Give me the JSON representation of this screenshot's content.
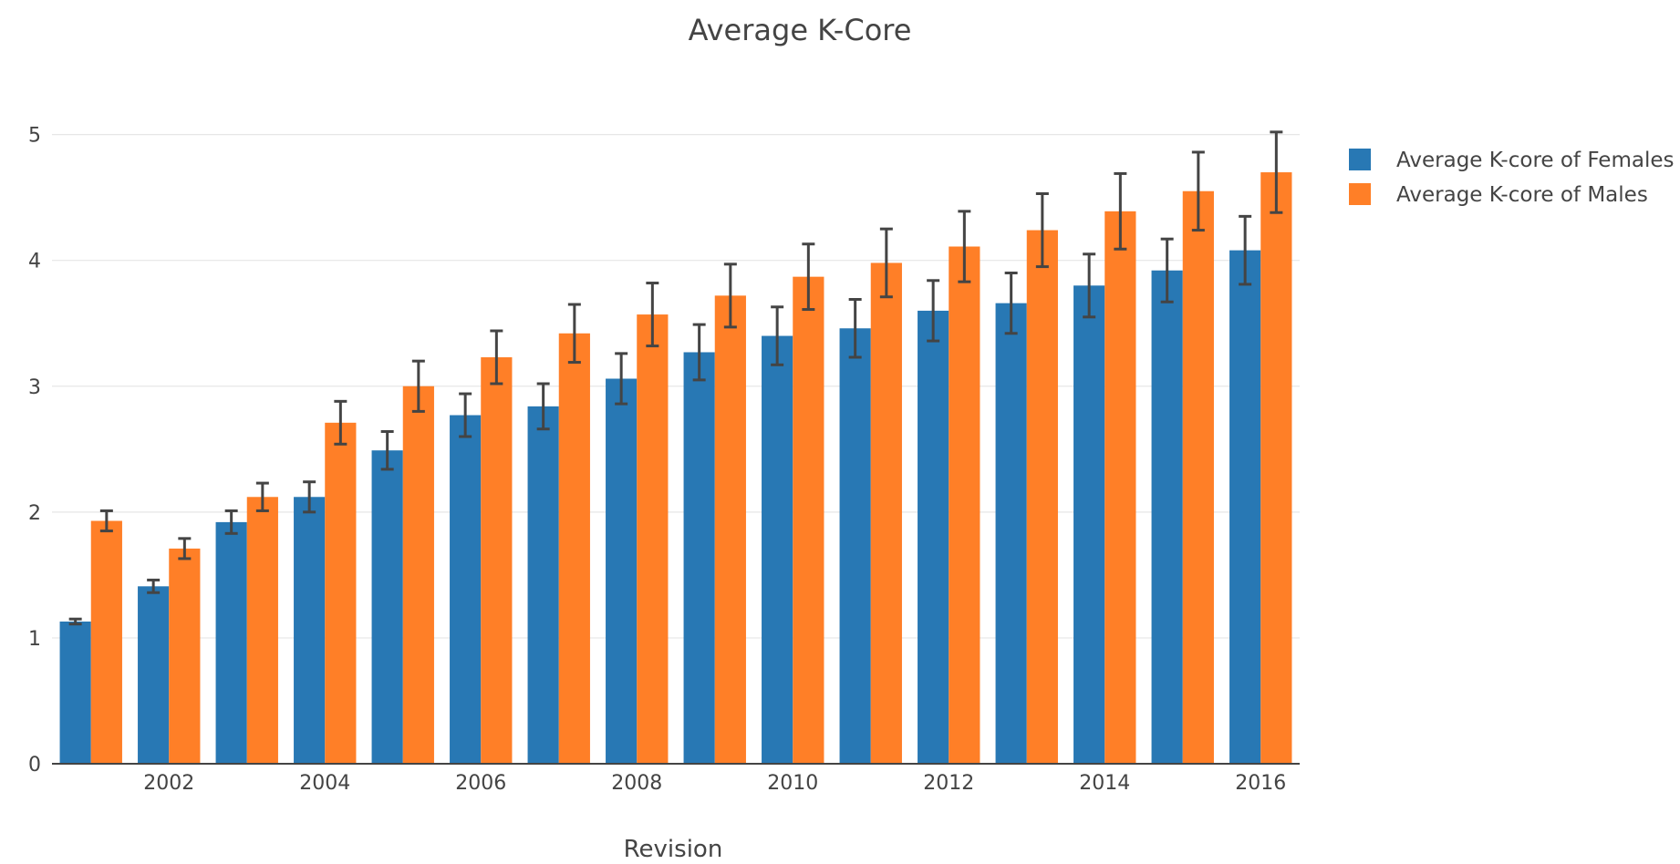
{
  "chart_data": {
    "type": "bar",
    "title": "Average K-Core",
    "xlabel": "Revision",
    "ylabel": "",
    "x": [
      2001,
      2002,
      2003,
      2004,
      2005,
      2006,
      2007,
      2008,
      2009,
      2010,
      2011,
      2012,
      2013,
      2014,
      2015,
      2016
    ],
    "x_tick_labels": [
      "2002",
      "2004",
      "2006",
      "2008",
      "2010",
      "2012",
      "2014",
      "2016"
    ],
    "y_tick_labels": [
      "0",
      "1",
      "2",
      "3",
      "4",
      "5"
    ],
    "ylim": [
      0,
      5.2
    ],
    "grid": true,
    "legend_position": "top-right",
    "series": [
      {
        "name": "Average K-core of Females",
        "color": "#2878b4",
        "values": [
          1.13,
          1.41,
          1.92,
          2.12,
          2.49,
          2.77,
          2.84,
          3.06,
          3.27,
          3.4,
          3.46,
          3.6,
          3.66,
          3.8,
          3.92,
          4.08
        ],
        "error": [
          0.02,
          0.05,
          0.09,
          0.12,
          0.15,
          0.17,
          0.18,
          0.2,
          0.22,
          0.23,
          0.23,
          0.24,
          0.24,
          0.25,
          0.25,
          0.27
        ]
      },
      {
        "name": "Average K-core of Males",
        "color": "#ff7f27",
        "values": [
          1.93,
          1.71,
          2.12,
          2.71,
          3.0,
          3.23,
          3.42,
          3.57,
          3.72,
          3.87,
          3.98,
          4.11,
          4.24,
          4.39,
          4.55,
          4.7
        ],
        "error": [
          0.08,
          0.08,
          0.11,
          0.17,
          0.2,
          0.21,
          0.23,
          0.25,
          0.25,
          0.26,
          0.27,
          0.28,
          0.29,
          0.3,
          0.31,
          0.32
        ]
      }
    ]
  }
}
